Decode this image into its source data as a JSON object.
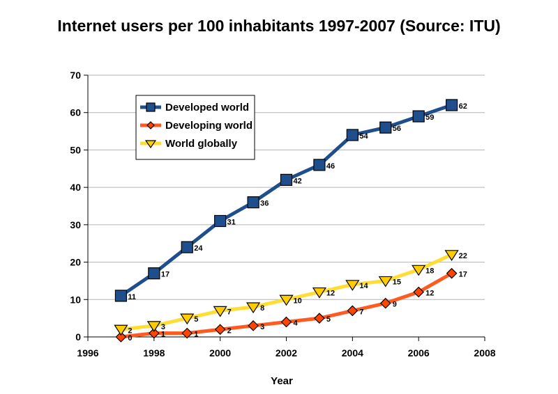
{
  "chart_data": {
    "type": "line",
    "title": "Internet users per 100 inhabitants 1997-2007 (Source: ITU)",
    "xlabel": "Year",
    "ylabel": "",
    "xlim": [
      1996,
      2008
    ],
    "ylim": [
      0,
      70
    ],
    "x_ticks": [
      1996,
      1998,
      2000,
      2002,
      2004,
      2006,
      2008
    ],
    "y_ticks": [
      0,
      10,
      20,
      30,
      40,
      50,
      60,
      70
    ],
    "grid": true,
    "legend_position": "top-left",
    "x": [
      1997,
      1998,
      1999,
      2000,
      2001,
      2002,
      2003,
      2004,
      2005,
      2006,
      2007
    ],
    "series": [
      {
        "name": "Developed world",
        "color": "#1f4e8c",
        "fill": "#1f4e8c",
        "marker": "square",
        "values": [
          11,
          17,
          24,
          31,
          36,
          42,
          46,
          54,
          56,
          59,
          62
        ]
      },
      {
        "name": "Developing world",
        "color": "#ff5a1f",
        "fill": "#ff4500",
        "marker": "diamond",
        "values": [
          0,
          1,
          1,
          2,
          3,
          4,
          5,
          7,
          9,
          12,
          17
        ]
      },
      {
        "name": "World globally",
        "color": "#ffdd33",
        "fill": "#ffcc00",
        "marker": "triangle-down",
        "values": [
          2,
          3,
          5,
          7,
          8,
          10,
          12,
          14,
          15,
          18,
          22
        ]
      }
    ]
  }
}
